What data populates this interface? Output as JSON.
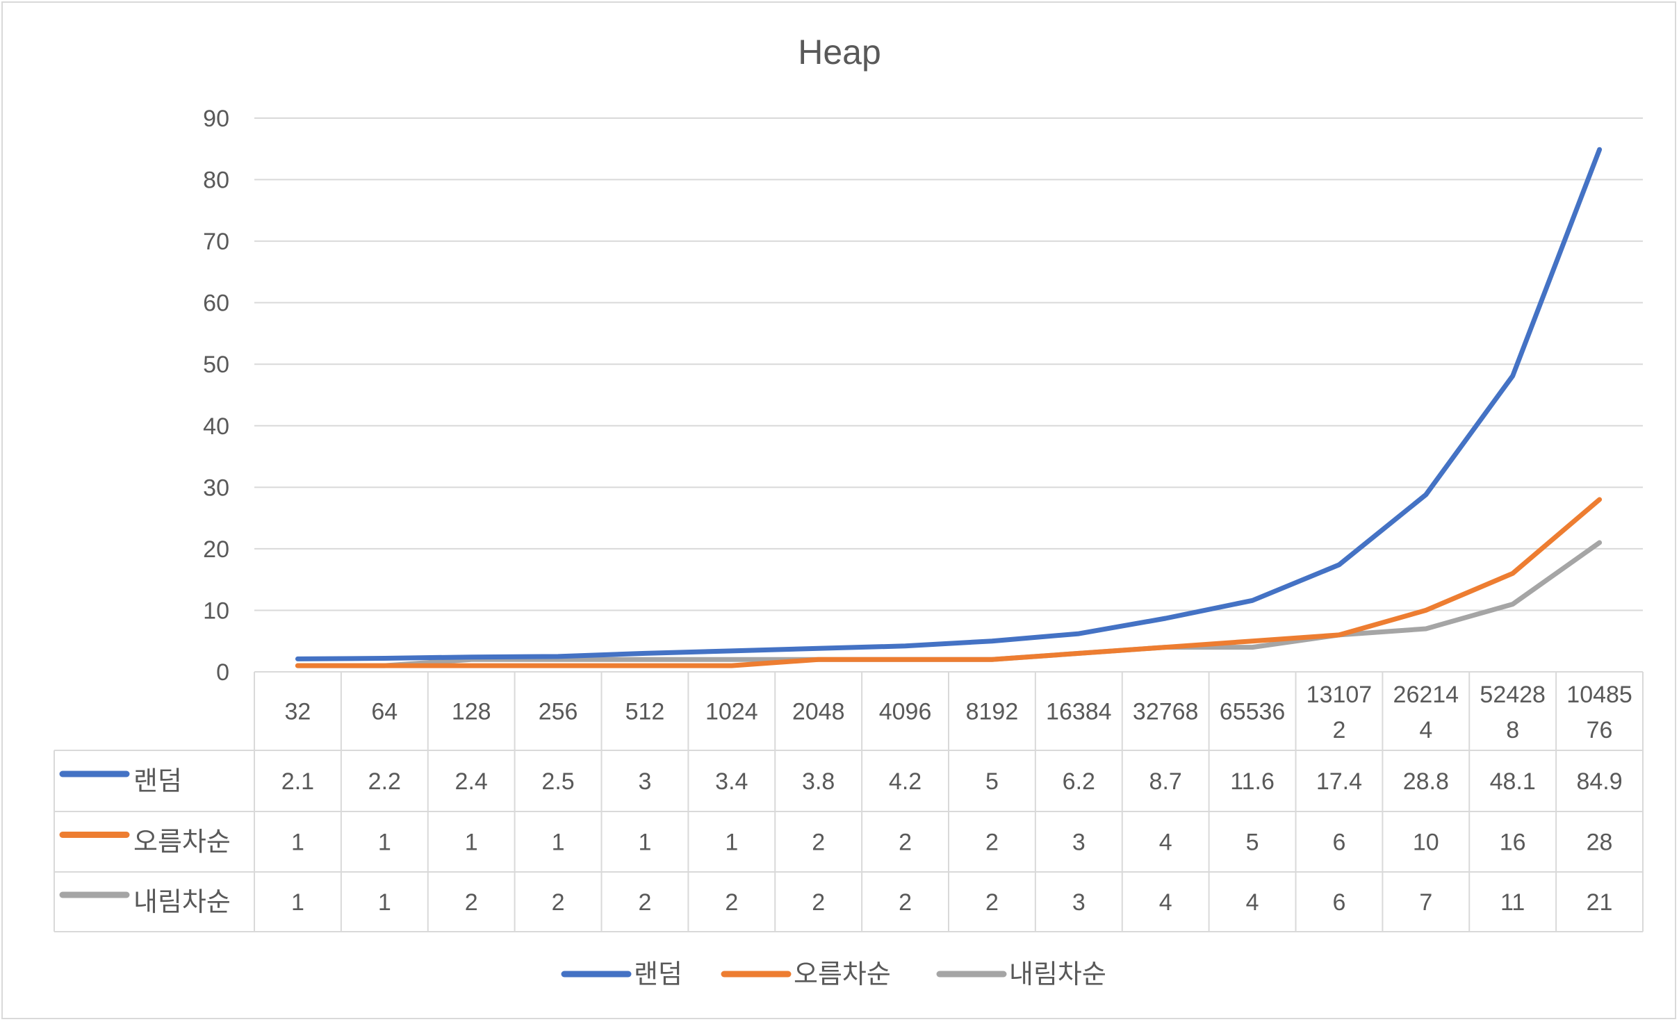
{
  "chart_data": {
    "type": "line",
    "title": "Heap",
    "xlabel": "",
    "ylabel": "",
    "ylim": [
      0,
      90
    ],
    "yticks": [
      "0",
      "10",
      "20",
      "30",
      "40",
      "50",
      "60",
      "70",
      "80",
      "90"
    ],
    "categories": [
      [
        "32"
      ],
      [
        "64"
      ],
      [
        "128"
      ],
      [
        "256"
      ],
      [
        "512"
      ],
      [
        "1024"
      ],
      [
        "2048"
      ],
      [
        "4096"
      ],
      [
        "8192"
      ],
      [
        "16384"
      ],
      [
        "32768"
      ],
      [
        "65536"
      ],
      [
        "13107",
        "2"
      ],
      [
        "26214",
        "4"
      ],
      [
        "52428",
        "8"
      ],
      [
        "10485",
        "76"
      ]
    ],
    "series": [
      {
        "name": "랜덤",
        "color": "#4472C4",
        "values": [
          2.1,
          2.2,
          2.4,
          2.5,
          3,
          3.4,
          3.8,
          4.2,
          5,
          6.2,
          8.7,
          11.6,
          17.4,
          28.8,
          48.1,
          84.9
        ],
        "labels": [
          "2.1",
          "2.2",
          "2.4",
          "2.5",
          "3",
          "3.4",
          "3.8",
          "4.2",
          "5",
          "6.2",
          "8.7",
          "11.6",
          "17.4",
          "28.8",
          "48.1",
          "84.9"
        ]
      },
      {
        "name": "오름차순",
        "color": "#ED7D31",
        "values": [
          1,
          1,
          1,
          1,
          1,
          1,
          2,
          2,
          2,
          3,
          4,
          5,
          6,
          10,
          16,
          28
        ],
        "labels": [
          "1",
          "1",
          "1",
          "1",
          "1",
          "1",
          "2",
          "2",
          "2",
          "3",
          "4",
          "5",
          "6",
          "10",
          "16",
          "28"
        ]
      },
      {
        "name": "내림차순",
        "color": "#A5A5A5",
        "values": [
          1,
          1,
          2,
          2,
          2,
          2,
          2,
          2,
          2,
          3,
          4,
          4,
          6,
          7,
          11,
          21
        ],
        "labels": [
          "1",
          "1",
          "2",
          "2",
          "2",
          "2",
          "2",
          "2",
          "2",
          "3",
          "4",
          "4",
          "6",
          "7",
          "11",
          "21"
        ]
      }
    ],
    "grid": true,
    "data_table": true,
    "legend_position": "bottom",
    "colors": {
      "gridline": "#D9D9D9",
      "text": "#595959",
      "table_border": "#D9D9D9"
    }
  }
}
